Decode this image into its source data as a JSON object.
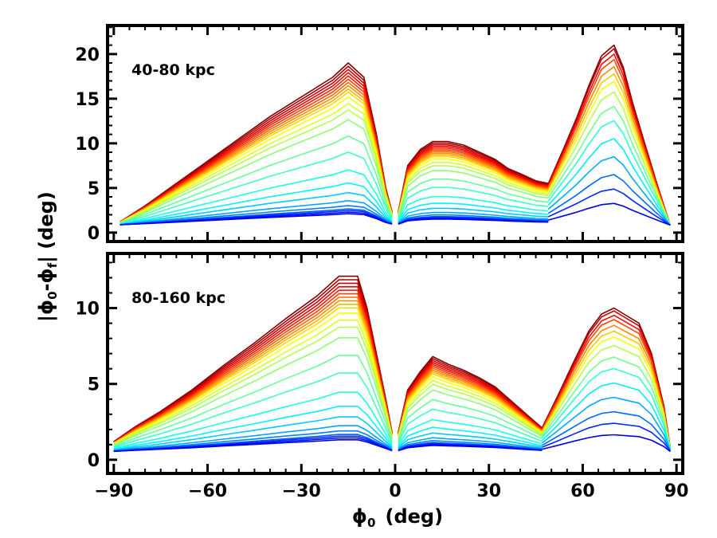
{
  "chart_data": [
    {
      "type": "line",
      "panel_label": "40-80 kpc",
      "xlim": [
        -92,
        92
      ],
      "ylim": [
        -1,
        23.2
      ],
      "xticks": [
        -90,
        -60,
        -30,
        0,
        30,
        60,
        90
      ],
      "yticks": [
        0,
        5,
        10,
        15,
        20
      ],
      "xtick_labels": [
        "−90",
        "−60",
        "−30",
        "0",
        "30",
        "60",
        "90"
      ],
      "ytick_labels": [
        "0",
        "5",
        "10",
        "15",
        "20"
      ],
      "envelope": {
        "left": {
          "x": [
            -88,
            -80,
            -70,
            -60,
            -50,
            -40,
            -30,
            -20,
            -15,
            -10,
            -6,
            -3,
            -1
          ],
          "y": [
            1.2,
            3.0,
            5.5,
            8.0,
            10.5,
            13.0,
            15.2,
            17.4,
            19.0,
            17.4,
            11.0,
            5.0,
            2.3
          ]
        },
        "middle": {
          "x": [
            1,
            4,
            8,
            12,
            17,
            22,
            27,
            32,
            36,
            40,
            45,
            49
          ],
          "y": [
            2.3,
            7.5,
            9.3,
            10.2,
            10.2,
            9.8,
            9.0,
            8.2,
            7.2,
            6.6,
            5.8,
            5.5
          ]
        },
        "right": {
          "x": [
            49,
            54,
            58,
            62,
            66,
            70,
            73,
            76,
            80,
            84,
            88
          ],
          "y": [
            5.5,
            9.5,
            12.8,
            16.5,
            19.8,
            21.0,
            18.5,
            14.5,
            9.8,
            5.2,
            0.8
          ]
        }
      },
      "contour_levels": {
        "left": [
          1.0,
          0.98,
          0.96,
          0.94,
          0.92,
          0.9,
          0.88,
          0.86,
          0.84,
          0.82,
          0.79,
          0.75,
          0.71,
          0.65,
          0.55,
          0.45,
          0.34,
          0.26,
          0.2,
          0.15,
          0.12,
          0.1,
          0.09,
          0.08,
          0.07
        ],
        "middle": [
          1.0,
          0.98,
          0.96,
          0.94,
          0.92,
          0.9,
          0.88,
          0.86,
          0.84,
          0.82,
          0.79,
          0.75,
          0.71,
          0.65,
          0.55,
          0.45,
          0.34,
          0.26,
          0.2,
          0.15,
          0.12,
          0.1,
          0.09,
          0.08,
          0.07
        ],
        "right": [
          1.0,
          0.98,
          0.95,
          0.92,
          0.88,
          0.84,
          0.8,
          0.74,
          0.66,
          0.58,
          0.48,
          0.38,
          0.28,
          0.2,
          0.12
        ]
      }
    },
    {
      "type": "line",
      "panel_label": "80-160 kpc",
      "xlim": [
        -92,
        92
      ],
      "ylim": [
        -0.9,
        13.6
      ],
      "xticks": [
        -90,
        -60,
        -30,
        0,
        30,
        60,
        90
      ],
      "yticks": [
        0,
        5,
        10
      ],
      "xtick_labels": [
        "−90",
        "−60",
        "−30",
        "0",
        "30",
        "60",
        "90"
      ],
      "ytick_labels": [
        "0",
        "5",
        "10"
      ],
      "envelope": {
        "left": {
          "x": [
            -90,
            -83,
            -75,
            -65,
            -55,
            -45,
            -35,
            -25,
            -18,
            -12,
            -9,
            -6,
            -3,
            -1
          ],
          "y": [
            1.2,
            2.2,
            3.2,
            4.6,
            6.2,
            7.7,
            9.3,
            10.8,
            12.1,
            12.1,
            10.0,
            7.0,
            4.0,
            1.8
          ]
        },
        "middle": {
          "x": [
            1,
            4,
            8,
            12,
            17,
            22,
            27,
            32,
            37,
            42,
            47
          ],
          "y": [
            1.8,
            4.6,
            5.8,
            6.8,
            6.3,
            5.9,
            5.4,
            4.8,
            3.9,
            3.0,
            2.1
          ]
        },
        "right": {
          "x": [
            47,
            52,
            57,
            62,
            66,
            70,
            74,
            78,
            82,
            86,
            88
          ],
          "y": [
            2.1,
            4.2,
            6.4,
            8.5,
            9.6,
            10.0,
            9.5,
            9.0,
            7.0,
            3.5,
            0.8
          ]
        }
      },
      "contour_levels": {
        "left": [
          1.0,
          0.98,
          0.96,
          0.94,
          0.92,
          0.9,
          0.88,
          0.86,
          0.84,
          0.82,
          0.79,
          0.75,
          0.71,
          0.65,
          0.55,
          0.45,
          0.34,
          0.26,
          0.2,
          0.15,
          0.12,
          0.1,
          0.09,
          0.08,
          0.07
        ],
        "middle": [
          1.0,
          0.98,
          0.96,
          0.94,
          0.92,
          0.9,
          0.88,
          0.86,
          0.84,
          0.82,
          0.79,
          0.75,
          0.71,
          0.65,
          0.55,
          0.45,
          0.34,
          0.26,
          0.2,
          0.15,
          0.12,
          0.1,
          0.09,
          0.08,
          0.07
        ],
        "right": [
          1.0,
          0.98,
          0.95,
          0.92,
          0.88,
          0.84,
          0.8,
          0.74,
          0.66,
          0.58,
          0.48,
          0.38,
          0.28,
          0.2,
          0.12
        ]
      }
    }
  ],
  "axes": {
    "xlabel_main": "ϕ",
    "xlabel_sub": "0",
    "xlabel_unit": "(deg)",
    "ylabel_parts": [
      "|ϕ",
      "0",
      "-ϕ",
      "f",
      "| (deg)"
    ]
  },
  "colormap": "jet"
}
